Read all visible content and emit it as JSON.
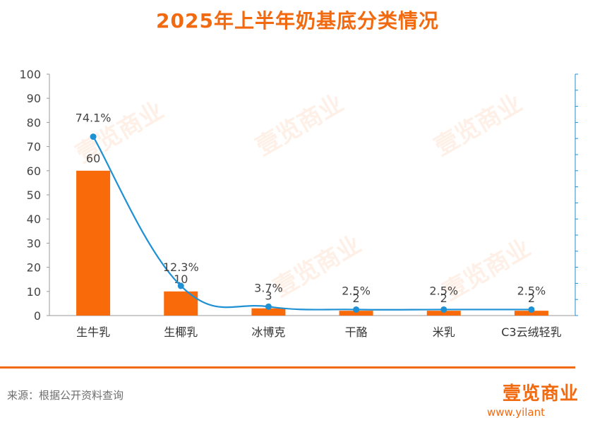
{
  "title": "2025年上半年奶基底分类情况",
  "source": "来源：根据公开资料查询",
  "brand": {
    "logo": "壹览商业",
    "url": "www.yilant",
    "watermark": "壹览商业"
  },
  "colors": {
    "accent": "#f26a10",
    "bar": "#f86a0a",
    "line": "#1e90d4"
  },
  "chart_data": {
    "type": "bar",
    "categories": [
      "生牛乳",
      "生椰乳",
      "冰博克",
      "干酪",
      "米乳",
      "C3云绒轻乳"
    ],
    "series": [
      {
        "type": "bar",
        "values": [
          60,
          10,
          3,
          2,
          2,
          2
        ],
        "labels": [
          "60",
          "10",
          "3",
          "2",
          "2",
          "2"
        ]
      },
      {
        "type": "line",
        "axis": "right",
        "values": [
          74.1,
          12.3,
          3.7,
          2.5,
          2.5,
          2.5
        ],
        "labels": [
          "74.1%",
          "12.3%",
          "3.7%",
          "2.5%",
          "2.5%",
          "2.5%"
        ]
      }
    ],
    "ylim": [
      0,
      100
    ],
    "yticks": [
      0,
      10,
      20,
      30,
      40,
      50,
      60,
      70,
      80,
      90,
      100
    ],
    "ylim_right": [
      0,
      100
    ],
    "grid": false,
    "legend": "none"
  }
}
